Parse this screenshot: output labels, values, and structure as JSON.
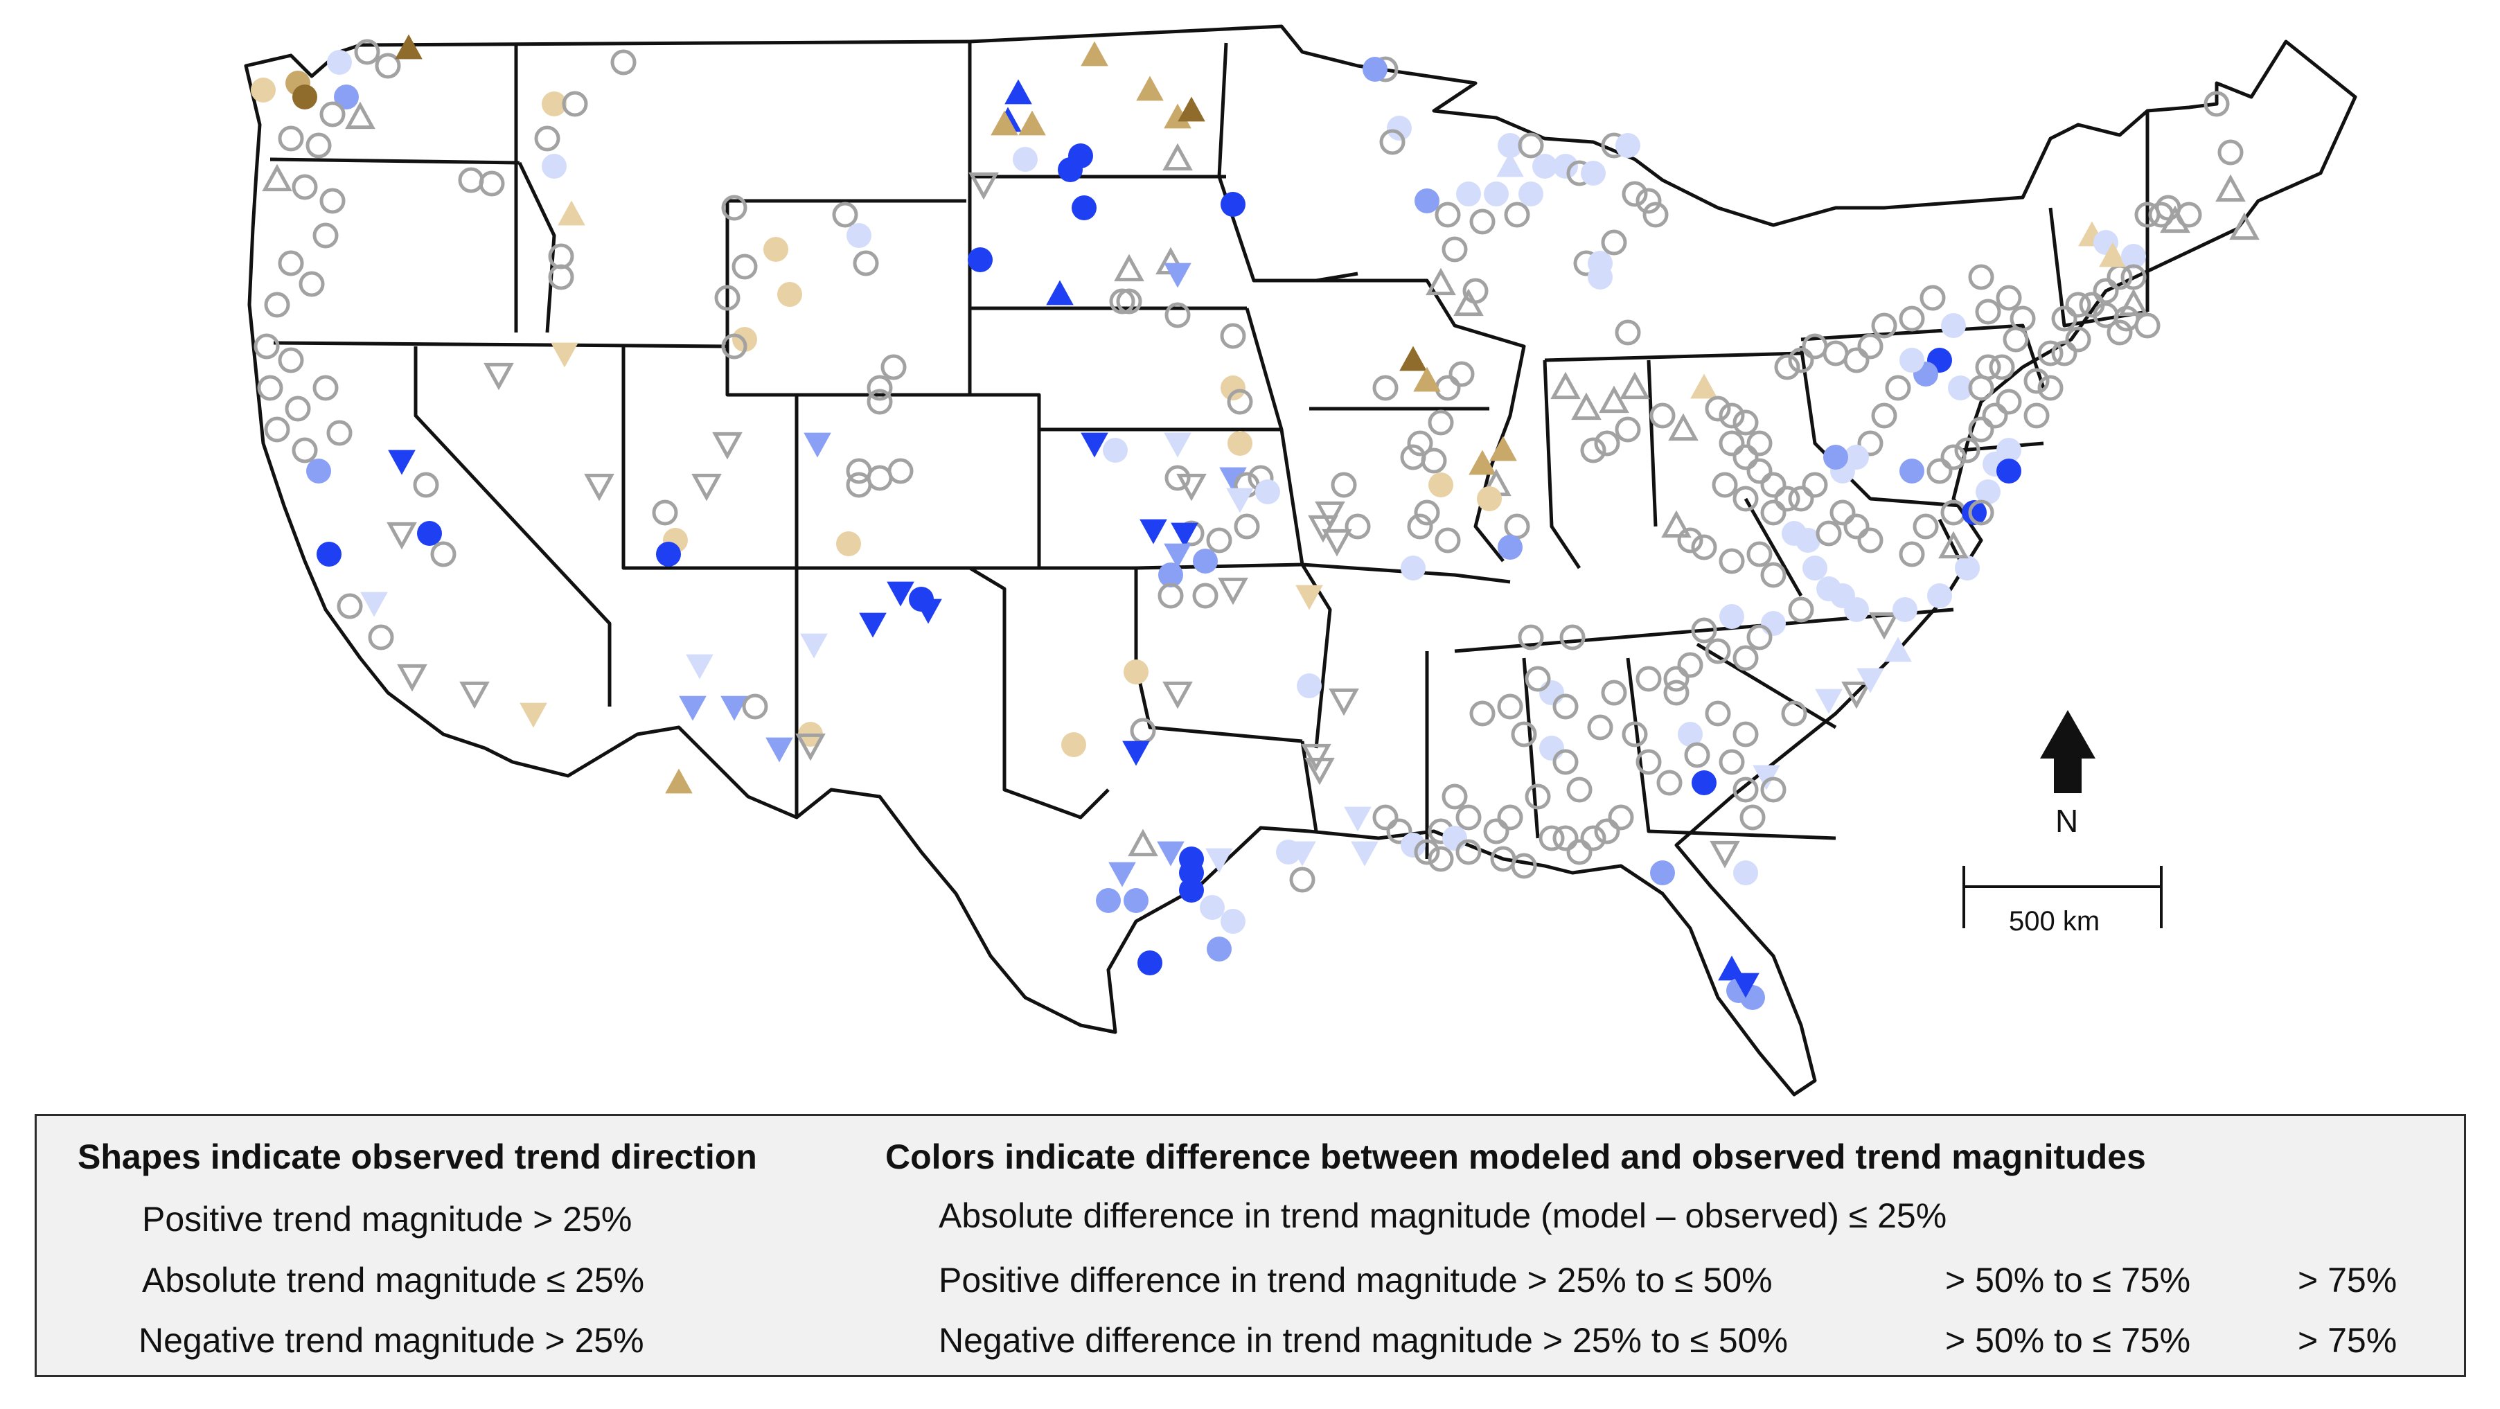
{
  "map": {
    "north_label": "N",
    "scale_label": "500 km"
  },
  "legend": {
    "shapes_heading": "Shapes indicate observed trend direction",
    "colors_heading": "Colors indicate difference between modeled and observed trend magnitudes",
    "shape_items": [
      {
        "shape": "triangle-up",
        "label": "Positive trend magnitude > 25%"
      },
      {
        "shape": "circle",
        "label": "Absolute trend magnitude ≤ 25%"
      },
      {
        "shape": "triangle-down",
        "label": "Negative trend magnitude > 25%"
      }
    ],
    "color_items": {
      "none": {
        "label": "Absolute difference in trend magnitude (model – observed) ≤ 25%",
        "color": "#ffffff"
      },
      "pos_low": {
        "label": "Positive difference in trend magnitude > 25% to ≤ 50%",
        "color": "#d3ddfb"
      },
      "pos_mid": {
        "label": "> 50% to ≤ 75%",
        "color": "#8aa0f5"
      },
      "pos_high": {
        "label": "> 75%",
        "color": "#1f3ff2"
      },
      "neg_low": {
        "label": "Negative difference in trend magnitude > 25% to ≤ 50%",
        "color": "#e8d1a4"
      },
      "neg_mid": {
        "label": "> 50% to ≤ 75%",
        "color": "#c9a96a"
      },
      "neg_high": {
        "label": "> 75%",
        "color": "#8f6c2c"
      }
    }
  },
  "colors": {
    "outline_gray": "#a2a2a2",
    "state_border": "#111111"
  }
}
